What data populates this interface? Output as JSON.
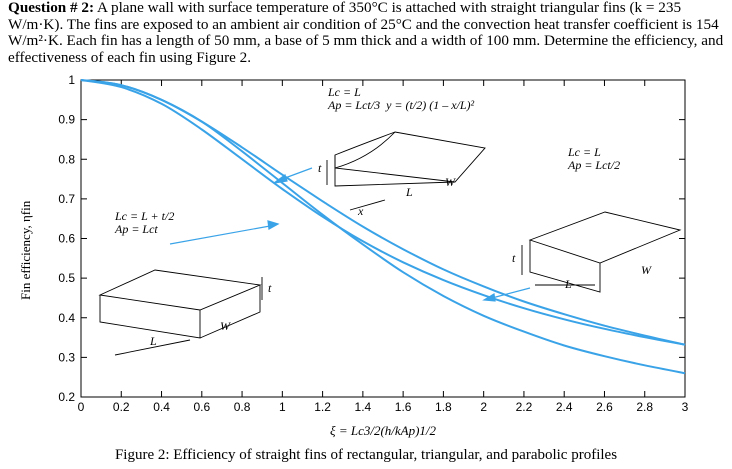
{
  "question": {
    "heading": "Question # 2:",
    "body": "A plane wall with surface temperature of 350°C is attached with straight triangular fins (k = 235 W/m·K). The fins are exposed to an ambient air condition of 25°C and the convection heat transfer coefficient is 154 W/m²·K. Each fin has a length of 50 mm, a base of 5 mm thick and a width of 100 mm. Determine the efficiency, and effectiveness of each fin using Figure 2."
  },
  "caption": "Figure 2: Efficiency of straight fins of rectangular, triangular, and parabolic profiles",
  "annotations": {
    "triangular": {
      "line1": "Lc = L",
      "line2": "Ap = Lct/3",
      "line3": "y = (t/2) (1 – x/L)²",
      "labels": [
        "t",
        "L",
        "W",
        "x"
      ]
    },
    "parabolic": {
      "line1": "Lc = L",
      "line2": "Ap = Lct/2",
      "labels": [
        "t",
        "L",
        "W"
      ]
    },
    "rectangular": {
      "line1": "Lc = L + t/2",
      "line2": "Ap = Lct",
      "labels": [
        "t",
        "L",
        "W"
      ]
    }
  },
  "chart_data": {
    "type": "line",
    "xlabel": "ξ = Lc3/2(h/kAp)1/2",
    "ylabel": "Fin efficiency, ηfin",
    "xlim": [
      0,
      3
    ],
    "ylim": [
      0.2,
      1.0
    ],
    "x_ticks": [
      "0",
      "0.2",
      "0.4",
      "0.6",
      "0.8",
      "1",
      "1.2",
      "1.4",
      "1.6",
      "1.8",
      "2",
      "2.2",
      "2.4",
      "2.6",
      "2.8",
      "3"
    ],
    "y_ticks": [
      "0.2",
      "0.3",
      "0.4",
      "0.5",
      "0.6",
      "0.7",
      "0.8",
      "0.9",
      "1"
    ],
    "grid": false,
    "color": "#3aa3e8",
    "series": [
      {
        "x": [
          0,
          0.2,
          0.4,
          0.6,
          0.8,
          1.0,
          1.2,
          1.4,
          1.6,
          1.8,
          2.0,
          2.2,
          2.4,
          2.6,
          2.8,
          3.0
        ],
        "y": [
          1.0,
          0.987,
          0.95,
          0.895,
          0.83,
          0.761,
          0.694,
          0.63,
          0.573,
          0.522,
          0.479,
          0.441,
          0.409,
          0.38,
          0.355,
          0.332
        ]
      },
      {
        "x": [
          0,
          0.2,
          0.4,
          0.6,
          0.8,
          1.0,
          1.2,
          1.4,
          1.6,
          1.8,
          2.0,
          2.2,
          2.4,
          2.6,
          2.8,
          3.0
        ],
        "y": [
          1.0,
          0.982,
          0.94,
          0.875,
          0.8,
          0.725,
          0.655,
          0.593,
          0.54,
          0.495,
          0.457,
          0.424,
          0.396,
          0.372,
          0.351,
          0.332
        ]
      },
      {
        "x": [
          0,
          0.2,
          0.4,
          0.6,
          0.8,
          1.0,
          1.2,
          1.4,
          1.6,
          1.8,
          2.0,
          2.2,
          2.4,
          2.6,
          2.8,
          3.0
        ],
        "y": [
          1.0,
          0.987,
          0.95,
          0.895,
          0.82,
          0.74,
          0.66,
          0.585,
          0.515,
          0.455,
          0.405,
          0.365,
          0.33,
          0.303,
          0.28,
          0.26
        ]
      }
    ]
  }
}
